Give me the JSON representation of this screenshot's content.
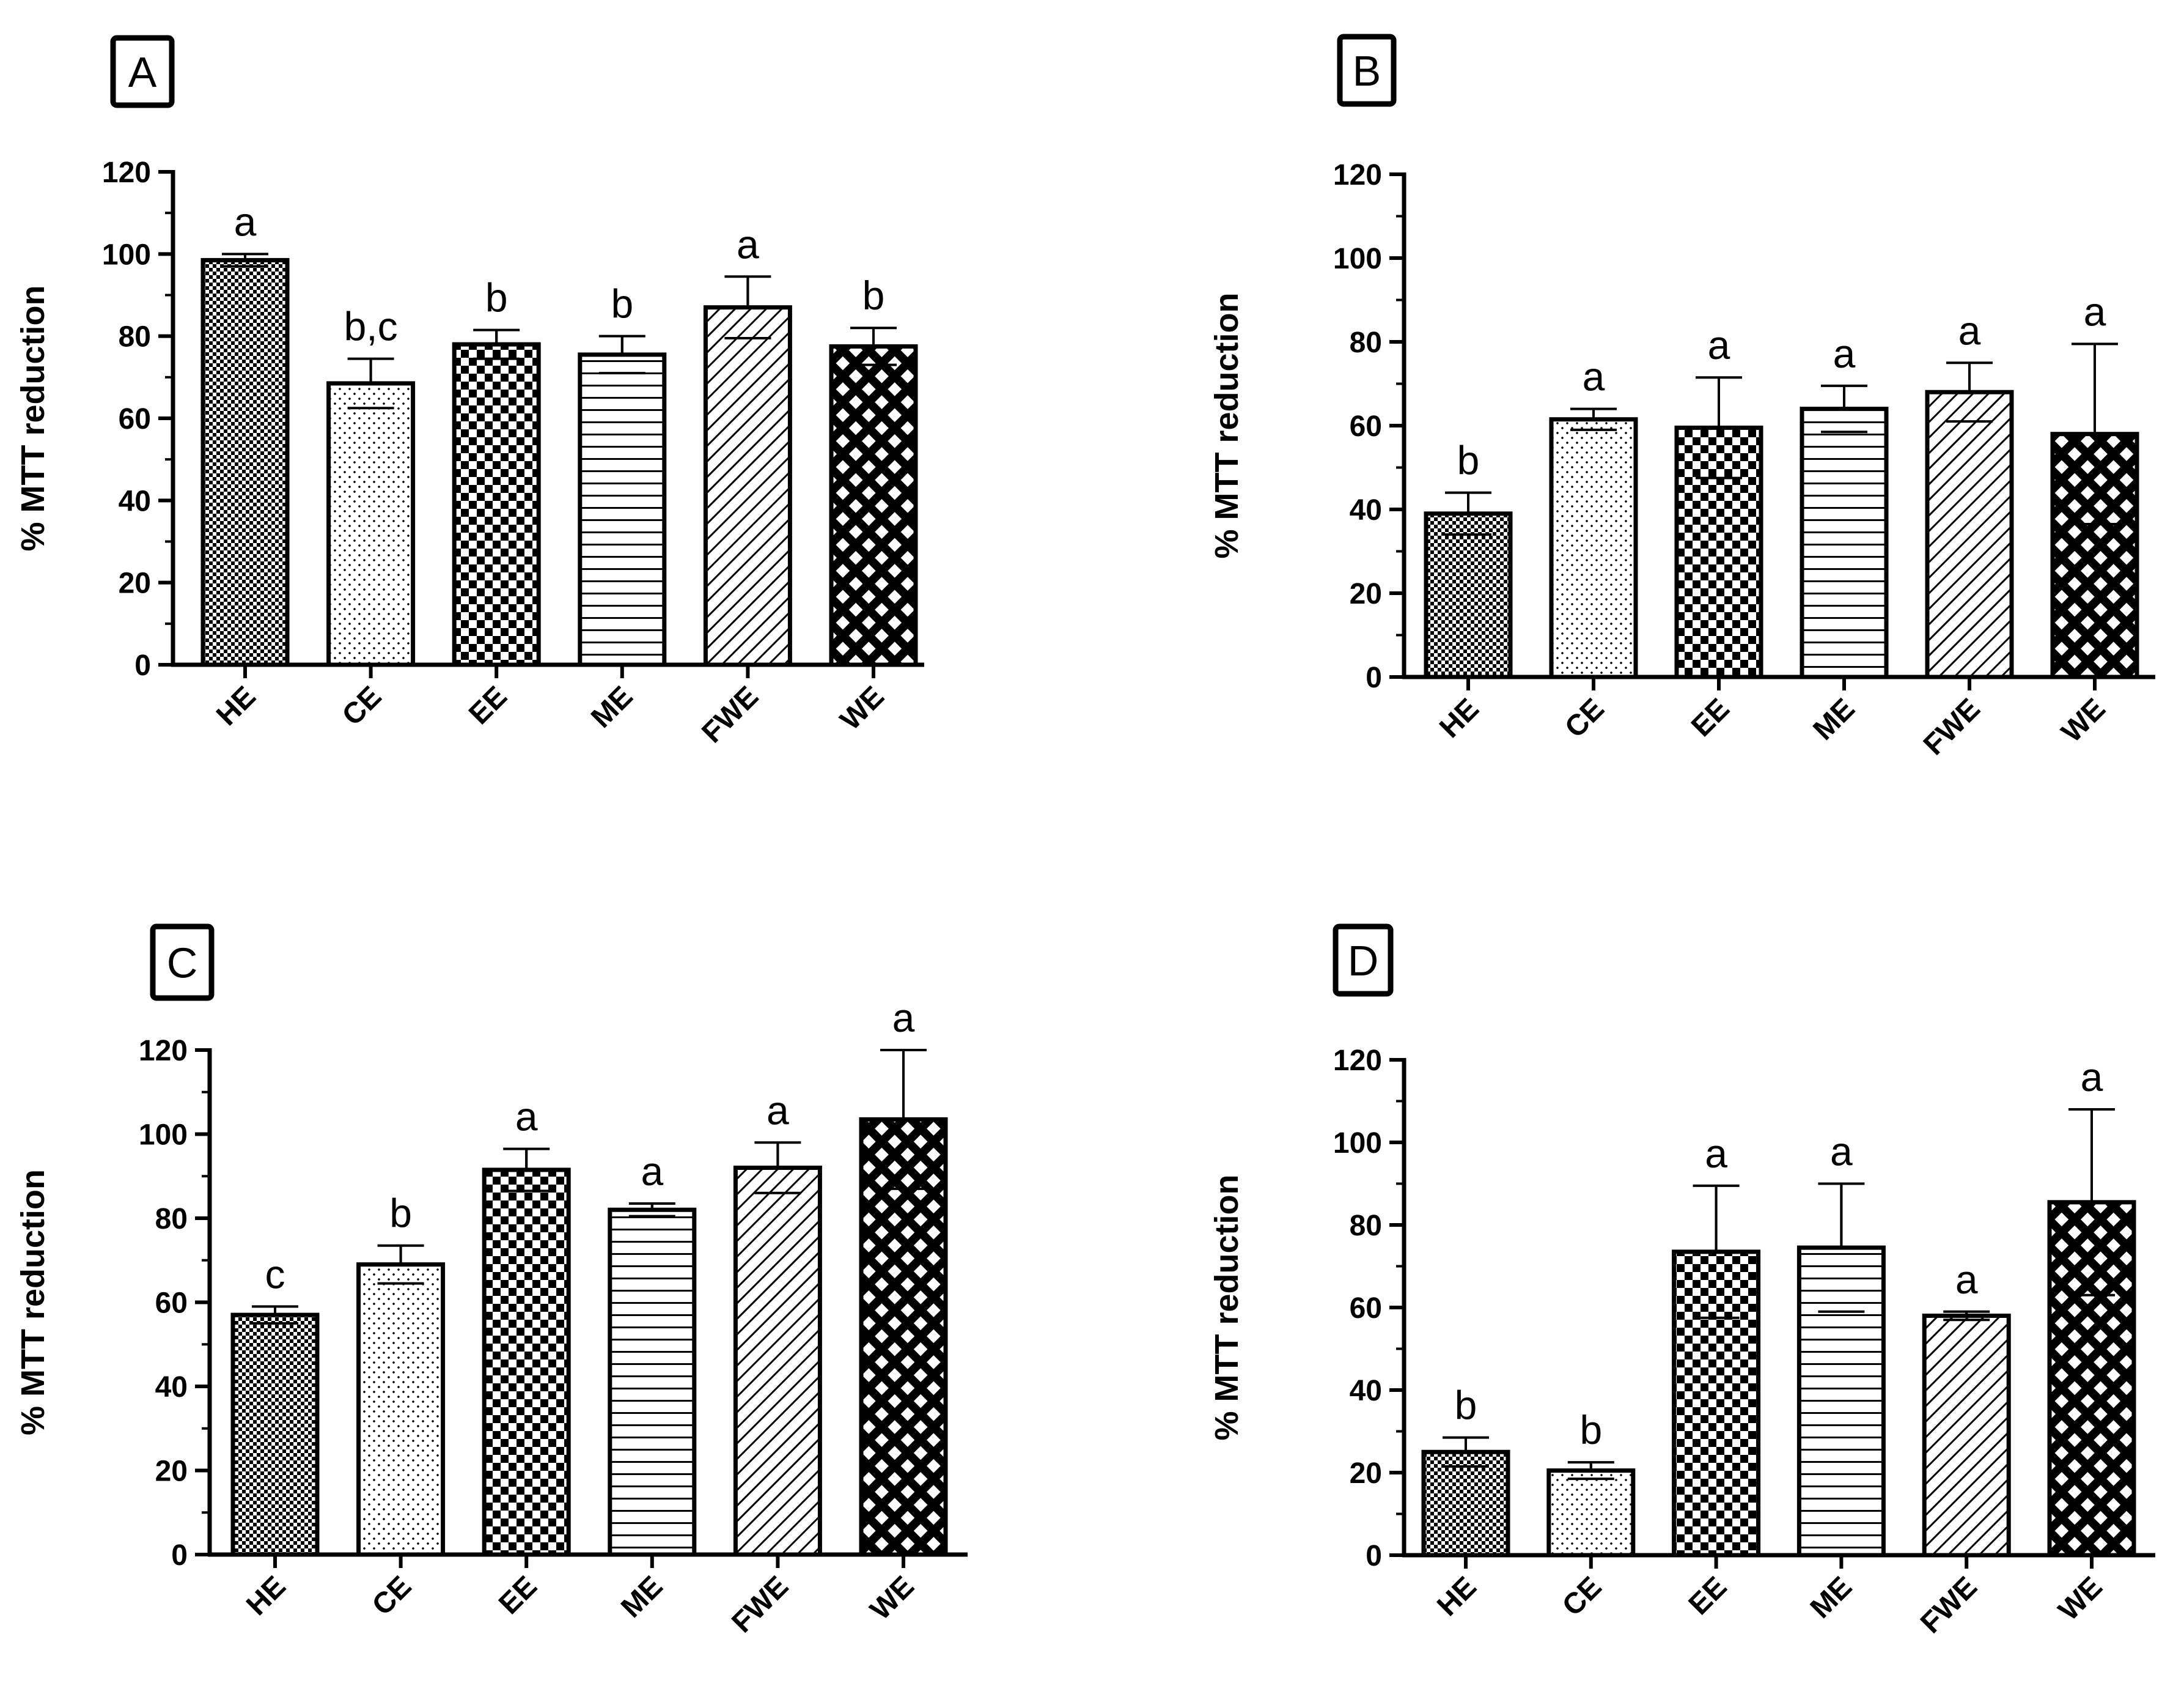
{
  "figure": {
    "y_axis_label": "%  MTT reduction",
    "categories": [
      "HE",
      "CE",
      "EE",
      "ME",
      "FWE",
      "WE"
    ],
    "y_ticks": [
      "0",
      "20",
      "40",
      "60",
      "80",
      "100",
      "120"
    ]
  },
  "chart_data": [
    {
      "panel": "A",
      "type": "bar",
      "title": "A",
      "ylabel": "%  MTT reduction",
      "ylim": [
        0,
        120
      ],
      "categories": [
        "HE",
        "CE",
        "EE",
        "ME",
        "FWE",
        "WE"
      ],
      "values": [
        98.5,
        68.5,
        78,
        75.5,
        87,
        77.5
      ],
      "errors": [
        1.5,
        6,
        3.5,
        4.5,
        7.5,
        4.5
      ],
      "letters": [
        "a",
        "b,c",
        "b",
        "b",
        "a",
        "b"
      ]
    },
    {
      "panel": "B",
      "type": "bar",
      "title": "B",
      "ylabel": "%  MTT reduction",
      "ylim": [
        0,
        120
      ],
      "categories": [
        "HE",
        "CE",
        "EE",
        "ME",
        "FWE",
        "WE"
      ],
      "values": [
        39,
        61.5,
        59.5,
        64,
        68,
        58
      ],
      "errors": [
        5,
        2.5,
        12,
        5.5,
        7,
        21.5
      ],
      "letters": [
        "b",
        "a",
        "a",
        "a",
        "a",
        "a"
      ]
    },
    {
      "panel": "C",
      "type": "bar",
      "title": "C",
      "ylabel": "%  MTT reduction",
      "ylim": [
        0,
        120
      ],
      "categories": [
        "HE",
        "CE",
        "EE",
        "ME",
        "FWE",
        "WE"
      ],
      "values": [
        57,
        69,
        91.5,
        82,
        92,
        103.5
      ],
      "errors": [
        2,
        4.5,
        5,
        1.5,
        6,
        16.5
      ],
      "letters": [
        "c",
        "b",
        "a",
        "a",
        "a",
        "a"
      ]
    },
    {
      "panel": "D",
      "type": "bar",
      "title": "D",
      "ylabel": "%  MTT reduction",
      "ylim": [
        0,
        120
      ],
      "categories": [
        "HE",
        "CE",
        "EE",
        "ME",
        "FWE",
        "WE"
      ],
      "values": [
        25,
        20.5,
        73.5,
        74.5,
        58,
        85.5
      ],
      "errors": [
        3.5,
        2,
        16,
        15.5,
        1,
        22.5
      ],
      "letters": [
        "b",
        "b",
        "a",
        "a",
        "a",
        "a"
      ]
    }
  ]
}
